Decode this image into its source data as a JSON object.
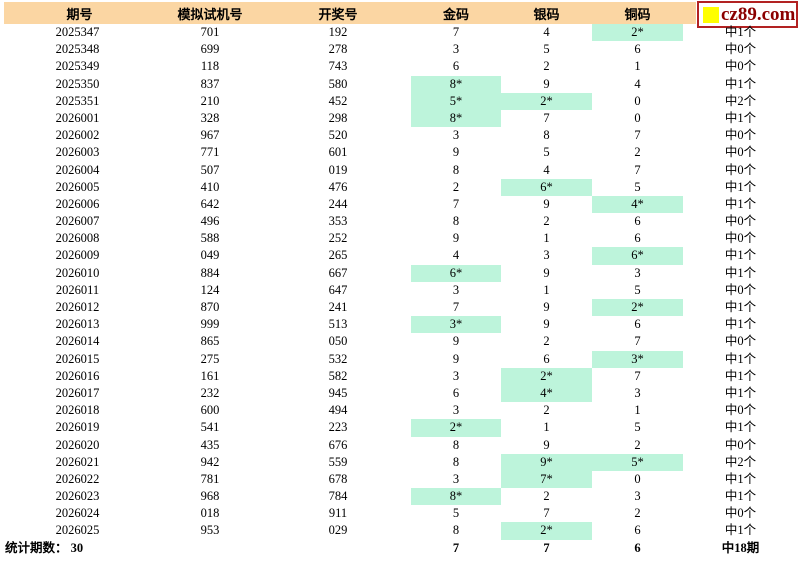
{
  "colors": {
    "header_bg": "#FBD6A3",
    "highlight": "#BDF4DB",
    "logo_border": "#B22222",
    "logo_text": "#8B0000",
    "logo_square": "#FFFF00"
  },
  "logo": {
    "text": "cz89.com"
  },
  "table": {
    "columns": [
      "期号",
      "模拟试机号",
      "开奖号",
      "金码",
      "银码",
      "铜码"
    ],
    "rows": [
      {
        "period": "2025347",
        "sim": "701",
        "draw": "192",
        "gold": "7",
        "silver": "4",
        "bronze": "2*",
        "hit": "中1个"
      },
      {
        "period": "2025348",
        "sim": "699",
        "draw": "278",
        "gold": "3",
        "silver": "5",
        "bronze": "6",
        "hit": "中0个"
      },
      {
        "period": "2025349",
        "sim": "118",
        "draw": "743",
        "gold": "6",
        "silver": "2",
        "bronze": "1",
        "hit": "中0个"
      },
      {
        "period": "2025350",
        "sim": "837",
        "draw": "580",
        "gold": "8*",
        "silver": "9",
        "bronze": "4",
        "hit": "中1个"
      },
      {
        "period": "2025351",
        "sim": "210",
        "draw": "452",
        "gold": "5*",
        "silver": "2*",
        "bronze": "0",
        "hit": "中2个"
      },
      {
        "period": "2026001",
        "sim": "328",
        "draw": "298",
        "gold": "8*",
        "silver": "7",
        "bronze": "0",
        "hit": "中1个"
      },
      {
        "period": "2026002",
        "sim": "967",
        "draw": "520",
        "gold": "3",
        "silver": "8",
        "bronze": "7",
        "hit": "中0个"
      },
      {
        "period": "2026003",
        "sim": "771",
        "draw": "601",
        "gold": "9",
        "silver": "5",
        "bronze": "2",
        "hit": "中0个"
      },
      {
        "period": "2026004",
        "sim": "507",
        "draw": "019",
        "gold": "8",
        "silver": "4",
        "bronze": "7",
        "hit": "中0个"
      },
      {
        "period": "2026005",
        "sim": "410",
        "draw": "476",
        "gold": "2",
        "silver": "6*",
        "bronze": "5",
        "hit": "中1个"
      },
      {
        "period": "2026006",
        "sim": "642",
        "draw": "244",
        "gold": "7",
        "silver": "9",
        "bronze": "4*",
        "hit": "中1个"
      },
      {
        "period": "2026007",
        "sim": "496",
        "draw": "353",
        "gold": "8",
        "silver": "2",
        "bronze": "6",
        "hit": "中0个"
      },
      {
        "period": "2026008",
        "sim": "588",
        "draw": "252",
        "gold": "9",
        "silver": "1",
        "bronze": "6",
        "hit": "中0个"
      },
      {
        "period": "2026009",
        "sim": "049",
        "draw": "265",
        "gold": "4",
        "silver": "3",
        "bronze": "6*",
        "hit": "中1个"
      },
      {
        "period": "2026010",
        "sim": "884",
        "draw": "667",
        "gold": "6*",
        "silver": "9",
        "bronze": "3",
        "hit": "中1个"
      },
      {
        "period": "2026011",
        "sim": "124",
        "draw": "647",
        "gold": "3",
        "silver": "1",
        "bronze": "5",
        "hit": "中0个"
      },
      {
        "period": "2026012",
        "sim": "870",
        "draw": "241",
        "gold": "7",
        "silver": "9",
        "bronze": "2*",
        "hit": "中1个"
      },
      {
        "period": "2026013",
        "sim": "999",
        "draw": "513",
        "gold": "3*",
        "silver": "9",
        "bronze": "6",
        "hit": "中1个"
      },
      {
        "period": "2026014",
        "sim": "865",
        "draw": "050",
        "gold": "9",
        "silver": "2",
        "bronze": "7",
        "hit": "中0个"
      },
      {
        "period": "2026015",
        "sim": "275",
        "draw": "532",
        "gold": "9",
        "silver": "6",
        "bronze": "3*",
        "hit": "中1个"
      },
      {
        "period": "2026016",
        "sim": "161",
        "draw": "582",
        "gold": "3",
        "silver": "2*",
        "bronze": "7",
        "hit": "中1个"
      },
      {
        "period": "2026017",
        "sim": "232",
        "draw": "945",
        "gold": "6",
        "silver": "4*",
        "bronze": "3",
        "hit": "中1个"
      },
      {
        "period": "2026018",
        "sim": "600",
        "draw": "494",
        "gold": "3",
        "silver": "2",
        "bronze": "1",
        "hit": "中0个"
      },
      {
        "period": "2026019",
        "sim": "541",
        "draw": "223",
        "gold": "2*",
        "silver": "1",
        "bronze": "5",
        "hit": "中1个"
      },
      {
        "period": "2026020",
        "sim": "435",
        "draw": "676",
        "gold": "8",
        "silver": "9",
        "bronze": "2",
        "hit": "中0个"
      },
      {
        "period": "2026021",
        "sim": "942",
        "draw": "559",
        "gold": "8",
        "silver": "9*",
        "bronze": "5*",
        "hit": "中2个"
      },
      {
        "period": "2026022",
        "sim": "781",
        "draw": "678",
        "gold": "3",
        "silver": "7*",
        "bronze": "0",
        "hit": "中1个"
      },
      {
        "period": "2026023",
        "sim": "968",
        "draw": "784",
        "gold": "8*",
        "silver": "2",
        "bronze": "3",
        "hit": "中1个"
      },
      {
        "period": "2026024",
        "sim": "018",
        "draw": "911",
        "gold": "5",
        "silver": "7",
        "bronze": "2",
        "hit": "中0个"
      },
      {
        "period": "2026025",
        "sim": "953",
        "draw": "029",
        "gold": "8",
        "silver": "2*",
        "bronze": "6",
        "hit": "中1个"
      }
    ],
    "footer": {
      "label": "统计期数： 30",
      "gold": "7",
      "silver": "7",
      "bronze": "6",
      "hit": "中18期"
    }
  }
}
